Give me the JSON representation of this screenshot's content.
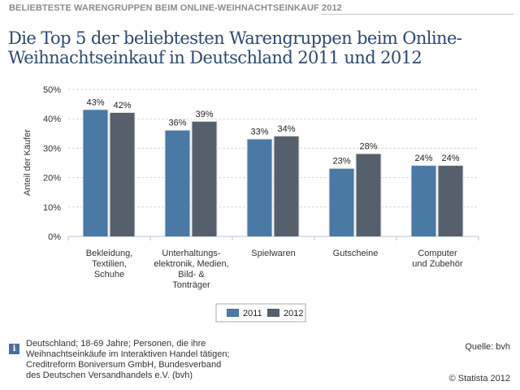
{
  "kicker": "BELIEBTESTE WARENGRUPPEN BEIM ONLINE-WEIHNACHTSEINKAUF 2012",
  "title_line1": "Die Top 5 der beliebtesten Warengruppen beim Online-",
  "title_line2": "Weihnachtseinkauf in Deutschland 2011 und 2012",
  "chart_data": {
    "type": "bar",
    "title": "Die Top 5 der beliebtesten Warengruppen beim Online-Weihnachtseinkauf in Deutschland 2011 und 2012",
    "xlabel": "",
    "ylabel": "Anteil der Käufer",
    "ylim": [
      0,
      50
    ],
    "yticks": [
      0,
      10,
      20,
      30,
      40,
      50
    ],
    "ytick_labels": [
      "0%",
      "10%",
      "20%",
      "30%",
      "40%",
      "50%"
    ],
    "grid": true,
    "legend_position": "bottom-center",
    "categories": [
      [
        "Bekleidung,",
        "Textilien,",
        "Schuhe"
      ],
      [
        "Unterhaltungs-",
        "elektronik, Medien,",
        "Bild- &",
        "Tonträger"
      ],
      [
        "Spielwaren"
      ],
      [
        "Gutscheine"
      ],
      [
        "Computer",
        "und Zubehör"
      ]
    ],
    "series": [
      {
        "name": "2011",
        "color": "#4a79a5",
        "values": [
          43,
          36,
          33,
          23,
          24
        ],
        "labels": [
          "43%",
          "36%",
          "33%",
          "23%",
          "24%"
        ]
      },
      {
        "name": "2012",
        "color": "#55606c",
        "values": [
          42,
          39,
          34,
          28,
          24
        ],
        "labels": [
          "42%",
          "39%",
          "34%",
          "28%",
          "24%"
        ]
      }
    ]
  },
  "footnote": [
    "Deutschland; 18-69 Jahre; Personen, die ihre",
    "Weihnachtseinkäufe im Interaktiven Handel tätigen;",
    "Creditreform Boniversum GmbH, Bundesverband",
    "des Deutschen Versandhandels e.V. (bvh)"
  ],
  "info_icon_glyph": "i",
  "source": "Quelle: bvh",
  "copyright": "© Statista 2012"
}
